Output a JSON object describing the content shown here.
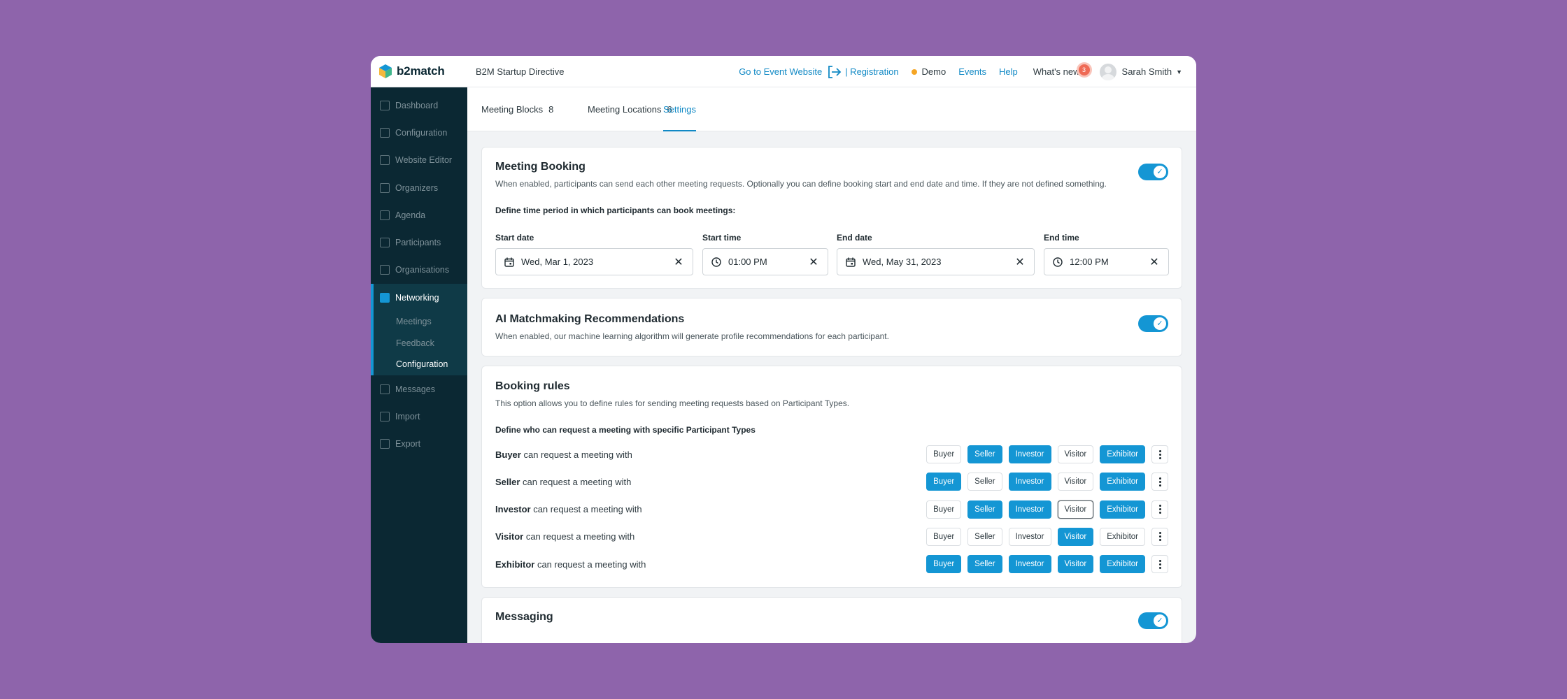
{
  "brand": {
    "name": "b2match",
    "colors": {
      "accent": "#1496d4",
      "sidebar": "#0b2833",
      "background": "#8e64ab",
      "badge": "#ef6a55",
      "demo_dot": "#f5a524"
    }
  },
  "header": {
    "event_name": "B2M Startup Directive",
    "go_to_website": "Go to Event Website",
    "registration": "| Registration",
    "demo": "Demo",
    "events": "Events",
    "help": "Help",
    "whats_new": "What's new",
    "whats_new_count": "3",
    "user_name": "Sarah Smith"
  },
  "sidebar": {
    "items": [
      {
        "label": "Dashboard",
        "icon": "chart-icon"
      },
      {
        "label": "Configuration",
        "icon": "gears-icon"
      },
      {
        "label": "Website Editor",
        "icon": "document-icon"
      },
      {
        "label": "Organizers",
        "icon": "people-icon"
      },
      {
        "label": "Agenda",
        "icon": "calendar-icon"
      },
      {
        "label": "Participants",
        "icon": "people-icon"
      },
      {
        "label": "Organisations",
        "icon": "building-icon"
      }
    ],
    "networking": {
      "label": "Networking",
      "icon": "handshake-icon",
      "sub": [
        "Meetings",
        "Feedback",
        "Configuration"
      ]
    },
    "items_after": [
      {
        "label": "Messages",
        "icon": "envelope-icon"
      },
      {
        "label": "Import",
        "icon": "import-icon"
      },
      {
        "label": "Export",
        "icon": "export-icon"
      }
    ]
  },
  "tabs": [
    {
      "label": "Meeting Blocks",
      "count": "8"
    },
    {
      "label": "Meeting Locations",
      "count": "6"
    },
    {
      "label": "Settings",
      "count": ""
    }
  ],
  "meeting_booking": {
    "title": "Meeting Booking",
    "description": "When enabled, participants can send each other meeting requests. Optionally you can define booking start and end date and time. If they are not defined something.",
    "period_label": "Define time period in which participants can book meetings:",
    "enabled": true,
    "fields": [
      {
        "label": "Start date",
        "value": "Wed, Mar 1, 2023",
        "icon": "calendar-icon"
      },
      {
        "label": "Start time",
        "value": "01:00 PM",
        "icon": "clock-icon"
      },
      {
        "label": "End date",
        "value": "Wed, May 31, 2023",
        "icon": "calendar-icon"
      },
      {
        "label": "End time",
        "value": "12:00 PM",
        "icon": "clock-icon"
      }
    ]
  },
  "ai_matchmaking": {
    "title": "AI Matchmaking Recommendations",
    "description": "When enabled, our machine learning algorithm will generate profile recommendations for each participant.",
    "enabled": true
  },
  "booking_rules": {
    "title": "Booking rules",
    "description": "This option allows you to define rules for sending meeting requests based on Participant Types.",
    "define_label": "Define who can request a meeting with specific Participant Types",
    "suffix": " can request a meeting with",
    "types": [
      "Buyer",
      "Seller",
      "Investor",
      "Visitor",
      "Exhibitor"
    ],
    "rows": [
      {
        "type": "Buyer",
        "allowed": [
          false,
          true,
          true,
          false,
          true
        ]
      },
      {
        "type": "Seller",
        "allowed": [
          true,
          false,
          true,
          false,
          true
        ]
      },
      {
        "type": "Investor",
        "allowed": [
          false,
          true,
          true,
          false,
          true
        ]
      },
      {
        "type": "Visitor",
        "allowed": [
          false,
          false,
          false,
          true,
          false
        ]
      },
      {
        "type": "Exhibitor",
        "allowed": [
          true,
          true,
          true,
          true,
          true
        ]
      }
    ]
  },
  "messaging": {
    "title": "Messaging",
    "enabled": true
  }
}
